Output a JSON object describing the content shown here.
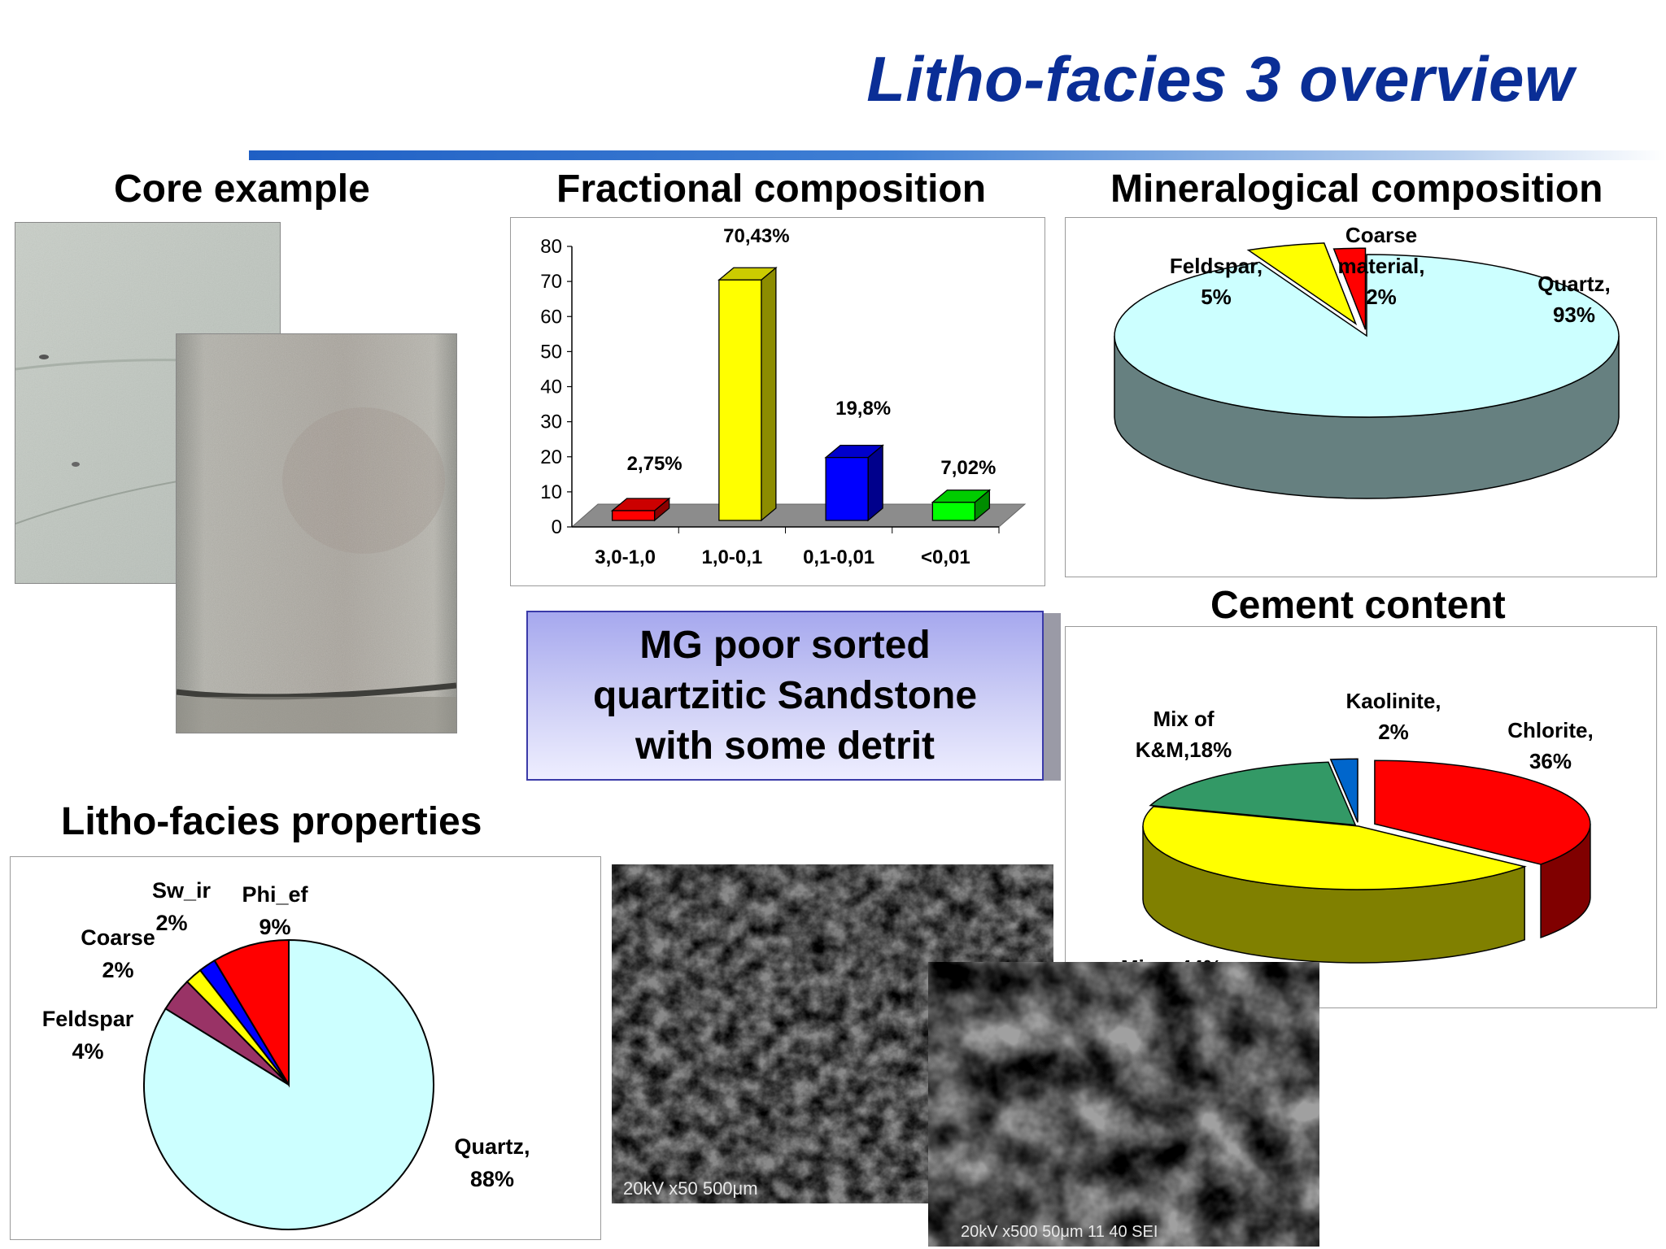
{
  "slide": {
    "title": "Litho-facies 3 overview",
    "core_heading": "Core example",
    "properties_heading": "Litho-facies properties",
    "summary_text": "MG poor sorted quartzitic Sandstone with some detrit"
  },
  "chart_data": [
    {
      "type": "bar",
      "title": "Fractional composition",
      "categories": [
        "3,0-1,0",
        "1,0-0,1",
        "0,1-0,01",
        "<0,01"
      ],
      "values": [
        2.75,
        70.43,
        19.8,
        7.02
      ],
      "data_labels": [
        "2,75%",
        "70,43%",
        "19,8%",
        "7,02%"
      ],
      "colors": [
        "#ff0000",
        "#ffff00",
        "#0000ff",
        "#00ff00"
      ],
      "ylim": [
        0,
        80
      ],
      "yticks": [
        "0",
        "10",
        "20",
        "30",
        "40",
        "50",
        "60",
        "70",
        "80"
      ],
      "style": "3d"
    },
    {
      "type": "pie",
      "title": "Mineralogical composition",
      "style": "3d",
      "slices": [
        {
          "label": "Quartz,",
          "pct": "93%",
          "value": 93,
          "color": "#ccffff"
        },
        {
          "label": "Feldspar,",
          "pct": "5%",
          "value": 5,
          "color": "#ffff00"
        },
        {
          "label": "Coarse material,",
          "pct": "2%",
          "value": 2,
          "color": "#ff0000"
        }
      ]
    },
    {
      "type": "pie",
      "title": "Cement content",
      "style": "3d",
      "slices": [
        {
          "label": "Chlorite,",
          "pct": "36%",
          "value": 36,
          "color": "#ff0000"
        },
        {
          "label": "Mica, 44%",
          "pct": "",
          "value": 44,
          "color": "#ffff00"
        },
        {
          "label": "Mix of K&M,18%",
          "pct": "",
          "value": 18,
          "color": "#339966"
        },
        {
          "label": "Kaolinite,",
          "pct": "2%",
          "value": 2,
          "color": "#0066cc"
        }
      ]
    },
    {
      "type": "pie",
      "title": "Litho-facies properties",
      "slices": [
        {
          "label": "Quartz,",
          "pct": "88%",
          "value": 88,
          "color": "#ccffff"
        },
        {
          "label": "Feldspar",
          "pct": "4%",
          "value": 4,
          "color": "#993366"
        },
        {
          "label": "Coarse",
          "pct": "2%",
          "value": 2,
          "color": "#ffff00"
        },
        {
          "label": "Sw_ir",
          "pct": "2%",
          "value": 2,
          "color": "#0000ff"
        },
        {
          "label": "Phi_ef",
          "pct": "9%",
          "value": 9,
          "color": "#ff0000"
        }
      ]
    }
  ],
  "images": {
    "core_photo_1": "core-sample-photo",
    "core_photo_2": "core-sample-photo",
    "sem_image_1": "sem-micrograph",
    "sem_image_2": "sem-micrograph",
    "sem_scale_text_1": "20kV  x50  500μm",
    "sem_scale_text_2": "20kV  x500  50μm  11 40 SEI"
  }
}
